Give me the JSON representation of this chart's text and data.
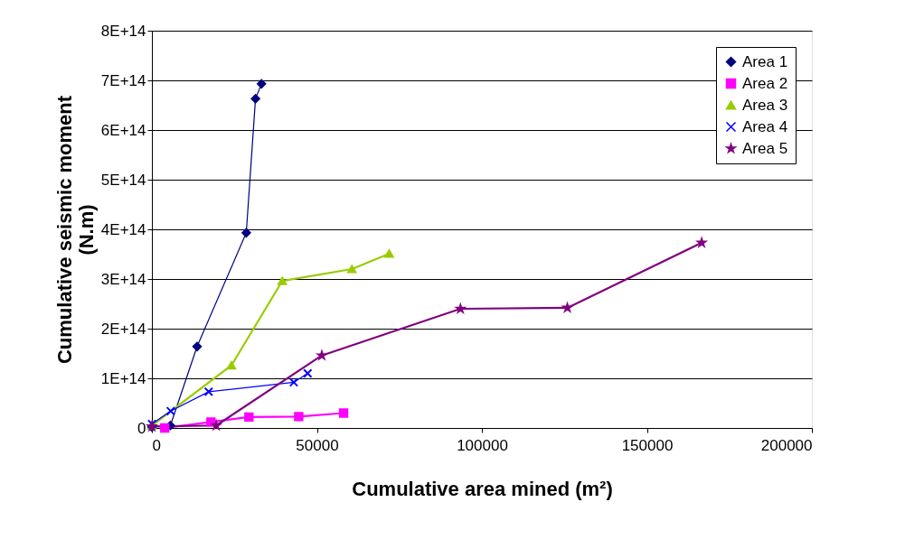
{
  "chart_data": {
    "type": "line",
    "xlabel": "Cumulative area mined (m²)",
    "ylabel": "Cumulative seismic moment\n(N.m)",
    "xlim": [
      0,
      200000
    ],
    "xticks": [
      0,
      50000,
      100000,
      150000,
      200000
    ],
    "ylim": [
      0,
      800000000000000.0
    ],
    "yticks": [
      0,
      {
        "value": 100000000000000.0,
        "label": "1E+14"
      },
      {
        "value": 200000000000000.0,
        "label": "2E+14"
      },
      {
        "value": 300000000000000.0,
        "label": "3E+14"
      },
      {
        "value": 400000000000000.0,
        "label": "4E+14"
      },
      {
        "value": 500000000000000.0,
        "label": "5E+14"
      },
      {
        "value": 600000000000000.0,
        "label": "6E+14"
      },
      {
        "value": 700000000000000.0,
        "label": "7E+14"
      },
      {
        "value": 800000000000000.0,
        "label": "8E+14"
      }
    ],
    "grid": "y",
    "legend": "top right",
    "series": [
      {
        "name": "Area 1",
        "color": "#000080",
        "marker": "diamond",
        "x": [
          0,
          5600,
          13700,
          28600,
          31400,
          33200
        ],
        "values": [
          2000000000000.0,
          5000000000000.0,
          164000000000000.0,
          393000000000000.0,
          663000000000000.0,
          693000000000000.0
        ]
      },
      {
        "name": "Area 2",
        "color": "#ff00ff",
        "marker": "square",
        "x": [
          3900,
          17900,
          29400,
          44500,
          58100
        ],
        "values": [
          0,
          12000000000000.0,
          22000000000000.0,
          23000000000000.0,
          30000000000000.0
        ]
      },
      {
        "name": "Area 3",
        "color": "#99cc00",
        "marker": "triangle",
        "x": [
          0,
          24100,
          39500,
          60600,
          71900
        ],
        "values": [
          5000000000000.0,
          126000000000000.0,
          296000000000000.0,
          320000000000000.0,
          351000000000000.0
        ]
      },
      {
        "name": "Area 4",
        "color": "#0000ff",
        "marker": "cross",
        "x": [
          0,
          5700,
          17200,
          43000,
          47200
        ],
        "values": [
          8000000000000.0,
          34000000000000.0,
          73000000000000.0,
          92000000000000.0,
          110000000000000.0
        ]
      },
      {
        "name": "Area 5",
        "color": "#800080",
        "marker": "star",
        "x": [
          0,
          19500,
          51500,
          93500,
          125900,
          166600
        ],
        "values": [
          3000000000000.0,
          5000000000000.0,
          146000000000000.0,
          240000000000000.0,
          242000000000000.0,
          373000000000000.0
        ]
      }
    ]
  }
}
